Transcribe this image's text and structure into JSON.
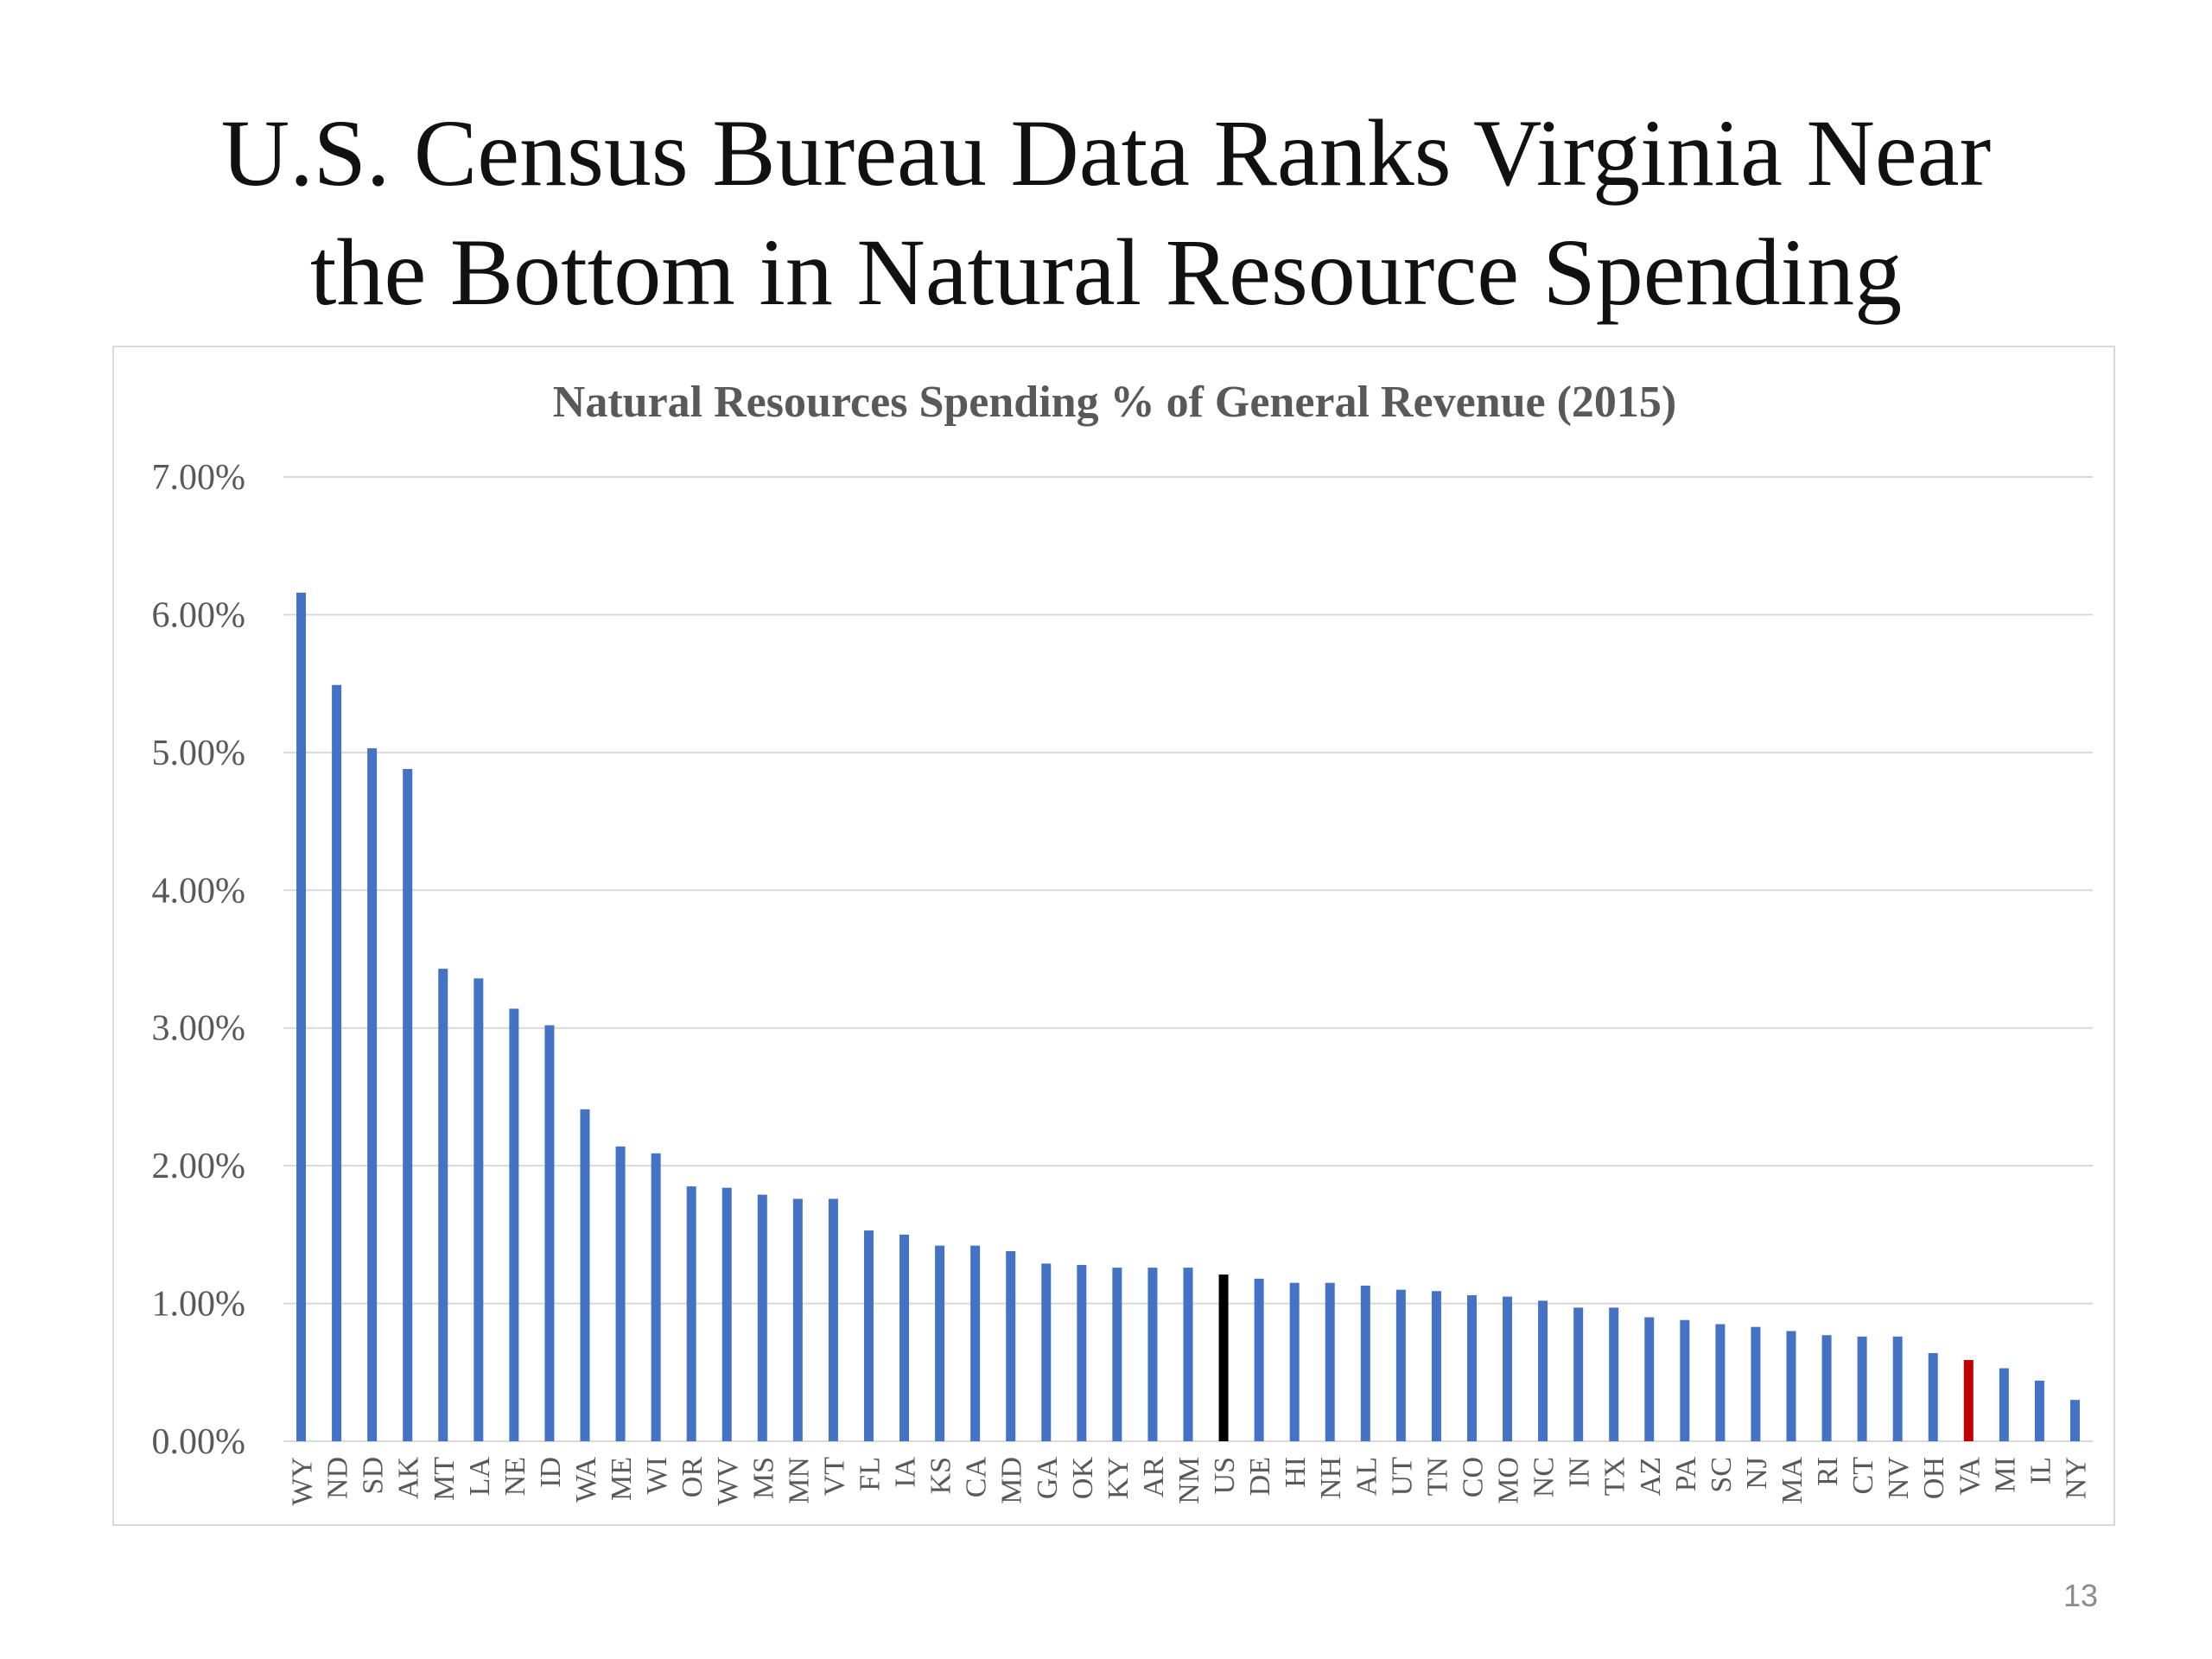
{
  "slide": {
    "title_line1": "U.S. Census Bureau Data Ranks Virginia Near",
    "title_line2": "the Bottom in Natural Resource Spending",
    "page_number": "13"
  },
  "colors": {
    "bar": "#4472C4",
    "us_average": "#000000",
    "virginia": "#C00000",
    "gridline": "#d9d9d9",
    "axis_text": "#595959"
  },
  "chart_data": {
    "type": "bar",
    "title": "Natural Resources Spending % of General Revenue (2015)",
    "xlabel": "",
    "ylabel": "",
    "ylim": [
      0,
      7
    ],
    "yticks": [
      "0.00%",
      "1.00%",
      "2.00%",
      "3.00%",
      "4.00%",
      "5.00%",
      "6.00%",
      "7.00%"
    ],
    "grid": true,
    "legend": "none",
    "categories": [
      "WY",
      "ND",
      "SD",
      "AK",
      "MT",
      "LA",
      "NE",
      "ID",
      "WA",
      "ME",
      "WI",
      "OR",
      "WV",
      "MS",
      "MN",
      "VT",
      "FL",
      "IA",
      "KS",
      "CA",
      "MD",
      "GA",
      "OK",
      "KY",
      "AR",
      "NM",
      "US",
      "DE",
      "HI",
      "NH",
      "AL",
      "UT",
      "TN",
      "CO",
      "MO",
      "NC",
      "IN",
      "TX",
      "AZ",
      "PA",
      "SC",
      "NJ",
      "MA",
      "RI",
      "CT",
      "NV",
      "OH",
      "VA",
      "MI",
      "IL",
      "NY"
    ],
    "values": [
      6.16,
      5.49,
      5.03,
      4.88,
      3.43,
      3.36,
      3.14,
      3.02,
      2.41,
      2.14,
      2.09,
      1.85,
      1.84,
      1.79,
      1.76,
      1.76,
      1.53,
      1.5,
      1.42,
      1.42,
      1.38,
      1.29,
      1.28,
      1.26,
      1.26,
      1.26,
      1.21,
      1.18,
      1.15,
      1.15,
      1.13,
      1.1,
      1.09,
      1.06,
      1.05,
      1.02,
      0.97,
      0.97,
      0.9,
      0.88,
      0.85,
      0.83,
      0.8,
      0.77,
      0.76,
      0.76,
      0.64,
      0.59,
      0.53,
      0.44,
      0.3
    ],
    "highlight": {
      "US": "us_average",
      "VA": "virginia"
    }
  }
}
